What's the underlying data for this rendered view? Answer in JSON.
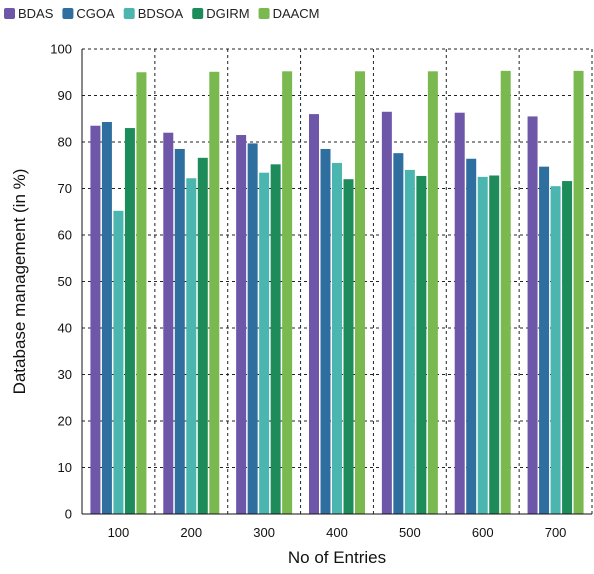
{
  "chart_data": {
    "type": "bar",
    "xlabel": "No of Entries",
    "ylabel": "Database management (in %)",
    "categories": [
      "100",
      "200",
      "300",
      "400",
      "500",
      "600",
      "700"
    ],
    "ylim": [
      0,
      100
    ],
    "yticks": [
      0,
      10,
      20,
      30,
      40,
      50,
      60,
      70,
      80,
      90,
      100
    ],
    "grid": true,
    "legend_position": "top-left",
    "series": [
      {
        "name": "BDAS",
        "color": "#6e57a8",
        "values": [
          83.5,
          82,
          81.5,
          86,
          86.5,
          86.3,
          85.5
        ]
      },
      {
        "name": "CGOA",
        "color": "#2f6f9f",
        "values": [
          84.3,
          78.5,
          79.7,
          78.5,
          77.6,
          76.4,
          74.7
        ]
      },
      {
        "name": "BDSOA",
        "color": "#4bb5b0",
        "values": [
          65.2,
          72.2,
          73.4,
          75.5,
          74,
          72.5,
          70.5
        ]
      },
      {
        "name": "DGIRM",
        "color": "#1e8c5a",
        "values": [
          83,
          76.6,
          75.2,
          72,
          72.7,
          72.8,
          71.6
        ]
      },
      {
        "name": "DAACM",
        "color": "#7ab850",
        "values": [
          95,
          95.1,
          95.2,
          95.2,
          95.2,
          95.3,
          95.3
        ]
      }
    ]
  }
}
